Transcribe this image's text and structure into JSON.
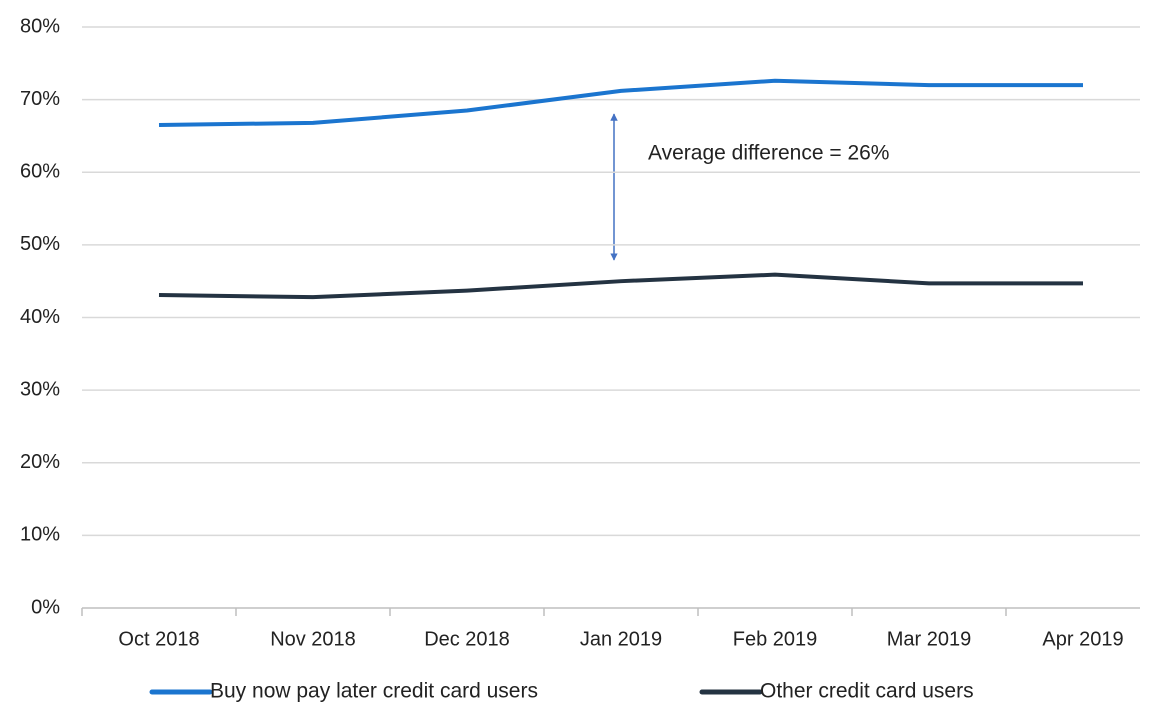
{
  "chart_data": {
    "type": "line",
    "categories": [
      "Oct 2018",
      "Nov 2018",
      "Dec 2018",
      "Jan 2019",
      "Feb 2019",
      "Mar 2019",
      "Apr 2019"
    ],
    "series": [
      {
        "name": "Buy now pay later credit card users",
        "color": "#1b75cf",
        "values": [
          66.5,
          66.8,
          68.5,
          71.2,
          72.6,
          72.0,
          72.0
        ]
      },
      {
        "name": "Other credit card users",
        "color": "#243342",
        "values": [
          43.1,
          42.8,
          43.7,
          45.0,
          45.9,
          44.7,
          44.7
        ]
      }
    ],
    "ylim": [
      0,
      80
    ],
    "yticks": [
      {
        "value": 0,
        "label": "0%"
      },
      {
        "value": 10,
        "label": "10%"
      },
      {
        "value": 20,
        "label": "20%"
      },
      {
        "value": 30,
        "label": "30%"
      },
      {
        "value": 40,
        "label": "40%"
      },
      {
        "value": 50,
        "label": "50%"
      },
      {
        "value": 60,
        "label": "60%"
      },
      {
        "value": 70,
        "label": "70%"
      },
      {
        "value": 80,
        "label": "80%"
      }
    ],
    "grid": true,
    "legend": "bottom",
    "annotations": [
      "Average difference = 26%"
    ]
  }
}
